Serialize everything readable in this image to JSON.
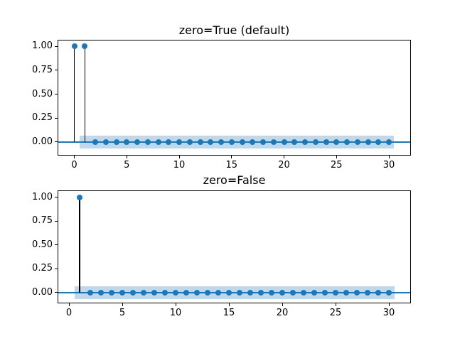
{
  "figure": {
    "background": "#ffffff"
  },
  "chart_data": [
    {
      "type": "stem",
      "title": "zero=True (default)",
      "x": [
        0,
        1,
        2,
        3,
        4,
        5,
        6,
        7,
        8,
        9,
        10,
        11,
        12,
        13,
        14,
        15,
        16,
        17,
        18,
        19,
        20,
        21,
        22,
        23,
        24,
        25,
        26,
        27,
        28,
        29,
        30
      ],
      "values": [
        1,
        1,
        0,
        0,
        0,
        0,
        0,
        0,
        0,
        0,
        0,
        0,
        0,
        0,
        0,
        0,
        0,
        0,
        0,
        0,
        0,
        0,
        0,
        0,
        0,
        0,
        0,
        0,
        0,
        0,
        0
      ],
      "xlim": [
        -1.53,
        32.03
      ],
      "ylim": [
        -0.134,
        1.061
      ],
      "xticks": [
        0,
        5,
        10,
        15,
        20,
        25,
        30
      ],
      "xtick_labels": [
        "0",
        "5",
        "10",
        "15",
        "20",
        "25",
        "30"
      ],
      "ytick_values": [
        1.0,
        0.75,
        0.5,
        0.25,
        0.0
      ],
      "ytick_labels": [
        "1.00",
        "0.75",
        "0.50",
        "0.25",
        "0.00"
      ],
      "baseline_y": 0,
      "band": {
        "x_start": 0.5,
        "x_end": 30.5,
        "y_min": -0.067,
        "y_max": 0.067
      },
      "grid": false,
      "legend": null,
      "xlabel": "",
      "ylabel": "",
      "colors": {
        "marker": "#1f77b4",
        "stem": "#000000",
        "baseline": "#1f77b4",
        "band": "#bfd8eb",
        "spine": "#000000",
        "text": "#000000"
      }
    },
    {
      "type": "stem",
      "title": "zero=False",
      "x": [
        1,
        2,
        3,
        4,
        5,
        6,
        7,
        8,
        9,
        10,
        11,
        12,
        13,
        14,
        15,
        16,
        17,
        18,
        19,
        20,
        21,
        22,
        23,
        24,
        25,
        26,
        27,
        28,
        29,
        30
      ],
      "values": [
        1,
        0,
        0,
        0,
        0,
        0,
        0,
        0,
        0,
        0,
        0,
        0,
        0,
        0,
        0,
        0,
        0,
        0,
        0,
        0,
        0,
        0,
        0,
        0,
        0,
        0,
        0,
        0,
        0,
        0
      ],
      "xlim": [
        -1.0,
        32.0
      ],
      "ylim": [
        -0.105,
        1.067
      ],
      "xticks": [
        0,
        5,
        10,
        15,
        20,
        25,
        30
      ],
      "xtick_labels": [
        "0",
        "5",
        "10",
        "15",
        "20",
        "25",
        "30"
      ],
      "ytick_values": [
        1.0,
        0.75,
        0.5,
        0.25,
        0.0
      ],
      "ytick_labels": [
        "1.00",
        "0.75",
        "0.50",
        "0.25",
        "0.00"
      ],
      "baseline_y": 0,
      "band": {
        "x_start": 0.5,
        "x_end": 30.5,
        "y_min": -0.067,
        "y_max": 0.067
      },
      "grid": false,
      "legend": null,
      "xlabel": "",
      "ylabel": "",
      "colors": {
        "marker": "#1f77b4",
        "stem": "#000000",
        "baseline": "#1f77b4",
        "band": "#bfd8eb",
        "spine": "#000000",
        "text": "#000000"
      }
    }
  ]
}
